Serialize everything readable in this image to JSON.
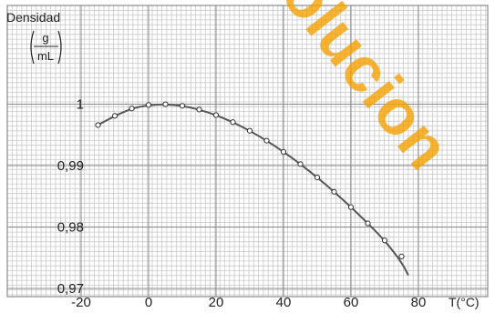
{
  "chart_data": {
    "type": "scatter",
    "ylabel": "Densidad",
    "yunit_num": "g",
    "yunit_den": "mL",
    "xlabel": "T(°C)",
    "xlim": [
      -24,
      86
    ],
    "ylim": [
      0.97,
      1.0035
    ],
    "x_ticks": [
      {
        "value": -20,
        "label": "-20"
      },
      {
        "value": 0,
        "label": "0"
      },
      {
        "value": 20,
        "label": "20"
      },
      {
        "value": 40,
        "label": "40"
      },
      {
        "value": 60,
        "label": "60"
      },
      {
        "value": 80,
        "label": "80"
      }
    ],
    "y_ticks": [
      {
        "value": 0.97,
        "label": "0,97"
      },
      {
        "value": 0.98,
        "label": "0,98"
      },
      {
        "value": 0.99,
        "label": "0,99"
      },
      {
        "value": 1.0,
        "label": "1"
      }
    ],
    "grid": true,
    "series": [
      {
        "x": [
          -15,
          -10,
          -5,
          0,
          5,
          10,
          15,
          20,
          25,
          30,
          35,
          40,
          45,
          50,
          55,
          60,
          65,
          70,
          75
        ],
        "y": [
          0.9966,
          0.9981,
          0.9993,
          0.99987,
          0.99999,
          0.99973,
          0.99913,
          0.99823,
          0.99707,
          0.99567,
          0.99406,
          0.99224,
          0.99025,
          0.98807,
          0.98573,
          0.98324,
          0.98059,
          0.97781,
          0.9752
        ]
      }
    ],
    "trend_curve": {
      "x": [
        -15,
        -10,
        -5,
        0,
        5,
        10,
        15,
        20,
        25,
        30,
        35,
        40,
        45,
        50,
        55,
        60,
        65,
        70,
        75,
        77
      ],
      "y": [
        0.9966,
        0.9981,
        0.9993,
        0.99987,
        0.99999,
        0.99973,
        0.99913,
        0.99823,
        0.99707,
        0.99567,
        0.99406,
        0.99224,
        0.99025,
        0.98807,
        0.98573,
        0.98324,
        0.98059,
        0.97781,
        0.97427,
        0.97215
      ]
    },
    "colors": {
      "background": "#ffffff",
      "grid_minor": "#c9c9c9",
      "grid_major": "#8c8c8c",
      "curve": "#555555",
      "marker_stroke": "#333333",
      "marker_fill": "#ffffff",
      "axis_text": "#222222"
    }
  }
}
